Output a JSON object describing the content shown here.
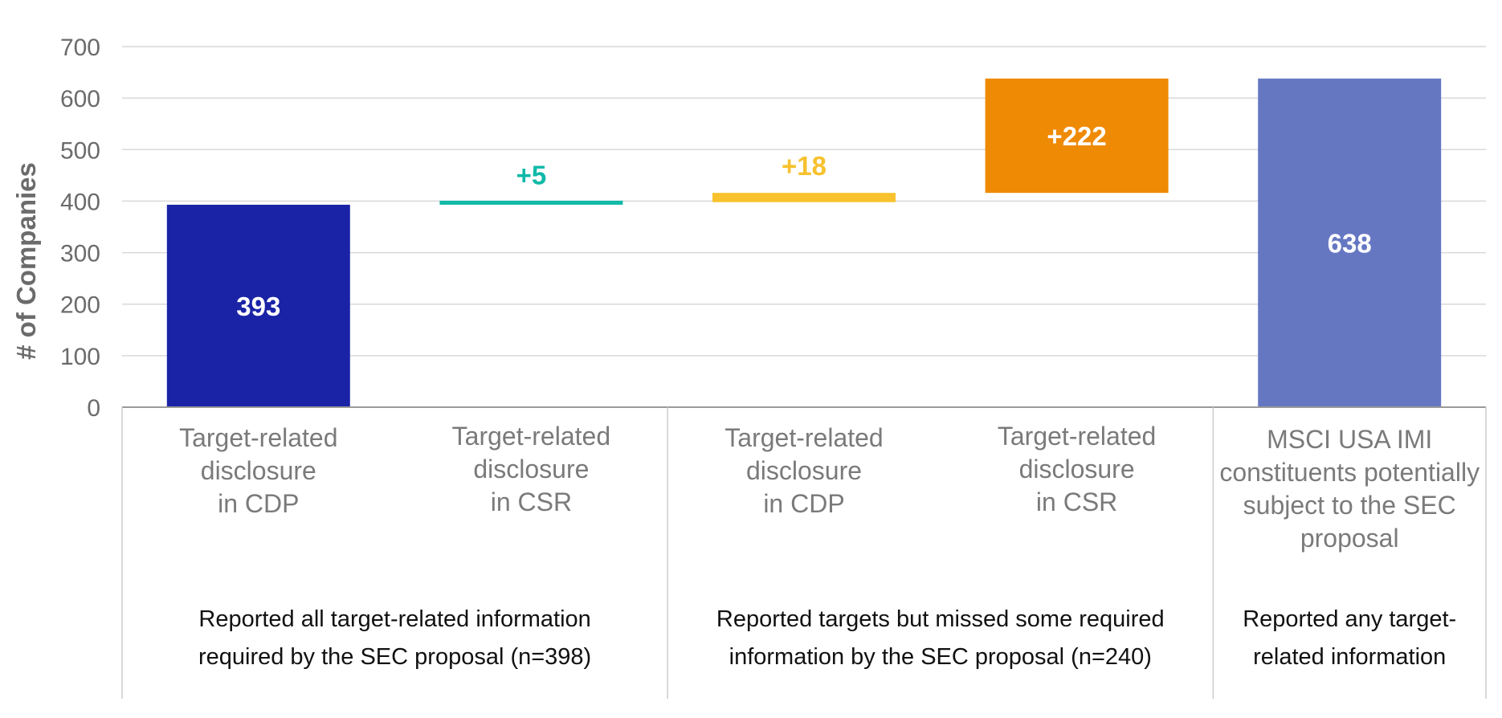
{
  "chart_data": {
    "type": "bar",
    "subtype": "waterfall",
    "ylabel": "# of Companies",
    "ylim": [
      0,
      700
    ],
    "yticks": [
      "0",
      "100",
      "200",
      "300",
      "400",
      "500",
      "600",
      "700"
    ],
    "grid": true,
    "bars": [
      {
        "category": [
          "Target-related",
          "disclosure",
          "in CDP"
        ],
        "base": 0,
        "value": 393,
        "label": "393",
        "color": "#1a23a6",
        "label_color": "#ffffff",
        "label_pos": "inside"
      },
      {
        "category": [
          "Target-related",
          "disclosure",
          "in CSR"
        ],
        "base": 393,
        "value": 5,
        "label": "+5",
        "color": "#10b9a8",
        "label_color": "#10b9a8",
        "label_pos": "above"
      },
      {
        "category": [
          "Target-related",
          "disclosure",
          "in CDP"
        ],
        "base": 398,
        "value": 18,
        "label": "+18",
        "color": "#f7c22e",
        "label_color": "#f7c22e",
        "label_pos": "above"
      },
      {
        "category": [
          "Target-related",
          "disclosure",
          "in CSR"
        ],
        "base": 416,
        "value": 222,
        "label": "+222",
        "color": "#ef8a04",
        "label_color": "#ffffff",
        "label_pos": "inside"
      },
      {
        "category": [
          "MSCI USA IMI",
          "constituents potentially",
          "subject to the SEC",
          "proposal"
        ],
        "base": 0,
        "value": 638,
        "label": "638",
        "color": "#6677c2",
        "label_color": "#ffffff",
        "label_pos": "inside"
      }
    ],
    "groups": [
      {
        "lines": [
          "Reported all target-related information",
          "required by the SEC proposal (n=398)"
        ],
        "bars": [
          0,
          1
        ]
      },
      {
        "lines": [
          "Reported targets but missed some required",
          "information by the SEC proposal (n=240)"
        ],
        "bars": [
          2,
          3
        ]
      },
      {
        "lines": [
          "Reported any target-",
          "related information"
        ],
        "bars": [
          4
        ]
      }
    ]
  }
}
